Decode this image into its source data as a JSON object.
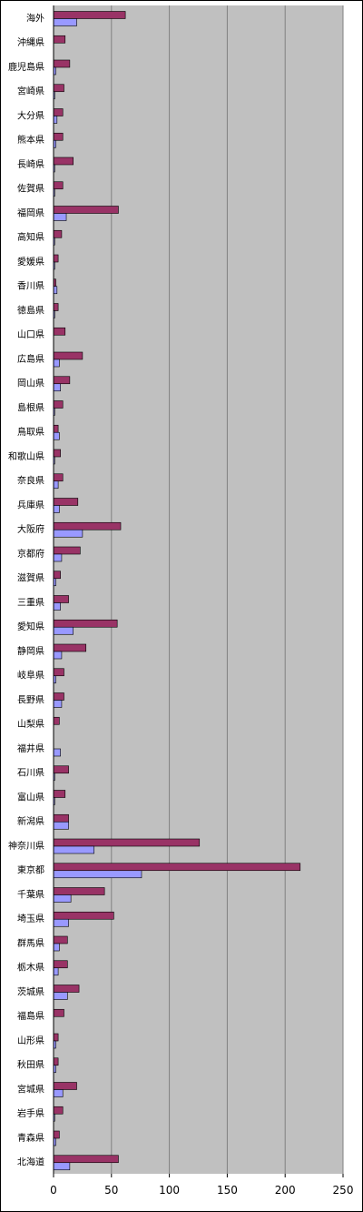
{
  "chart_data": {
    "type": "bar",
    "orientation": "horizontal",
    "title": "",
    "xlabel": "",
    "ylabel": "",
    "xlim": [
      0,
      250
    ],
    "x_ticks": [
      "0",
      "50",
      "100",
      "150",
      "200",
      "250"
    ],
    "grid": "vertical",
    "legend": "none",
    "colors": {
      "plot_bg": "#c0c0c0",
      "series_a": "#993366",
      "series_b": "#9999ff",
      "gridline": "#808080"
    },
    "categories": [
      "海外",
      "沖縄県",
      "鹿児島県",
      "宮崎県",
      "大分県",
      "熊本県",
      "長崎県",
      "佐賀県",
      "福岡県",
      "高知県",
      "愛媛県",
      "香川県",
      "徳島県",
      "山口県",
      "広島県",
      "岡山県",
      "島根県",
      "鳥取県",
      "和歌山県",
      "奈良県",
      "兵庫県",
      "大阪府",
      "京都府",
      "滋賀県",
      "三重県",
      "愛知県",
      "静岡県",
      "岐阜県",
      "長野県",
      "山梨県",
      "福井県",
      "石川県",
      "富山県",
      "新潟県",
      "神奈川県",
      "東京都",
      "千葉県",
      "埼玉県",
      "群馬県",
      "栃木県",
      "茨城県",
      "福島県",
      "山形県",
      "秋田県",
      "宮城県",
      "岩手県",
      "青森県",
      "北海道"
    ],
    "series": [
      {
        "values": [
          62,
          10,
          14,
          9,
          8,
          8,
          17,
          8,
          56,
          7,
          4,
          2,
          4,
          10,
          25,
          14,
          8,
          4,
          6,
          8,
          21,
          58,
          23,
          6,
          13,
          55,
          28,
          9,
          9,
          5,
          0,
          13,
          10,
          13,
          126,
          213,
          44,
          52,
          12,
          12,
          22,
          9,
          4,
          4,
          20,
          8,
          5,
          56
        ]
      },
      {
        "values": [
          20,
          0,
          2,
          1,
          3,
          2,
          1,
          1,
          11,
          1,
          1,
          3,
          1,
          0,
          5,
          6,
          1,
          5,
          1,
          4,
          5,
          25,
          7,
          2,
          6,
          17,
          7,
          2,
          7,
          0,
          6,
          1,
          1,
          13,
          35,
          76,
          15,
          13,
          5,
          4,
          12,
          0,
          2,
          2,
          8,
          1,
          2,
          14
        ]
      }
    ]
  }
}
